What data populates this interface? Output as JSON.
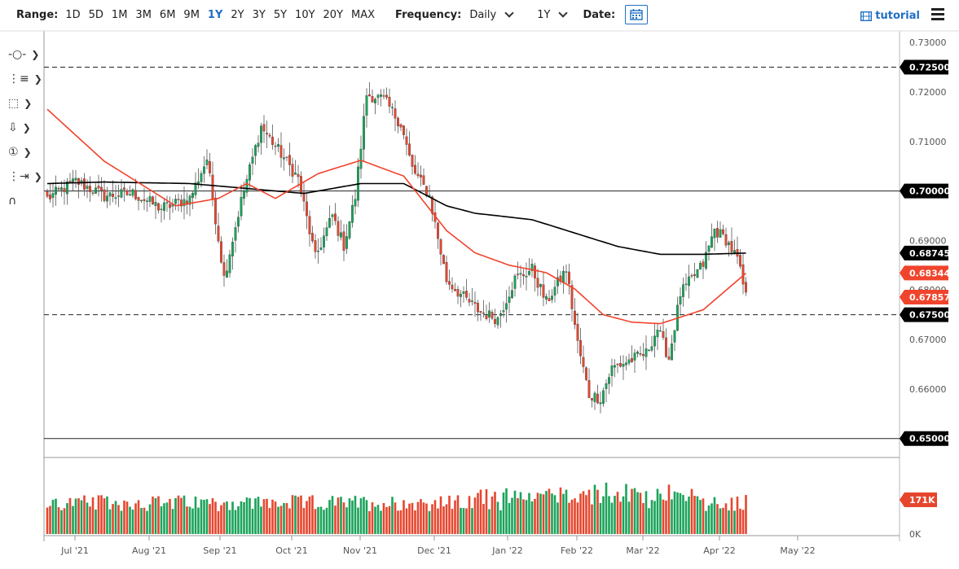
{
  "toolbar": {
    "range_label": "Range:",
    "ranges": [
      "1D",
      "5D",
      "1M",
      "3M",
      "6M",
      "9M",
      "1Y",
      "2Y",
      "3Y",
      "5Y",
      "10Y",
      "20Y",
      "MAX"
    ],
    "active_range": "1Y",
    "frequency_label": "Frequency:",
    "frequency_value": "Daily",
    "period_value": "1Y",
    "date_label": "Date:",
    "tutorial_label": "tutorial"
  },
  "chart_data": {
    "type": "candlestick",
    "x_ticks": [
      "Jul '21",
      "Aug '21",
      "Sep '21",
      "Oct '21",
      "Nov '21",
      "Dec '21",
      "Jan '22",
      "Feb '22",
      "Mar '22",
      "Apr '22",
      "May '22"
    ],
    "y_ticks": [
      "0.73000",
      "0.72000",
      "0.71000",
      "0.70000",
      "0.69000",
      "0.68000",
      "0.67000",
      "0.66000",
      "0.65000"
    ],
    "ylim": [
      0.6465,
      0.7315
    ],
    "horizontal_lines": [
      {
        "value": 0.725,
        "label": "0.72500",
        "style": "dashed"
      },
      {
        "value": 0.7,
        "label": "0.70000",
        "style": "solid"
      },
      {
        "value": 0.675,
        "label": "0.67500",
        "style": "dashed"
      },
      {
        "value": 0.65,
        "label": "0.65000",
        "style": "solid"
      }
    ],
    "price_tags": [
      {
        "value": 0.68745,
        "label": "0.68745",
        "color": "#000000",
        "series": "ma200"
      },
      {
        "value": 0.68344,
        "label": "0.68344",
        "color": "#f0442c",
        "series": "ma50"
      },
      {
        "value": 0.67857,
        "label": "0.67857",
        "color": "#f0442c",
        "series": "last"
      }
    ],
    "ma50_knots": [
      [
        0,
        0.7165
      ],
      [
        20,
        0.706
      ],
      [
        45,
        0.697
      ],
      [
        60,
        0.6985
      ],
      [
        70,
        0.7015
      ],
      [
        80,
        0.6985
      ],
      [
        95,
        0.7035
      ],
      [
        110,
        0.7062
      ],
      [
        125,
        0.703
      ],
      [
        140,
        0.692
      ],
      [
        150,
        0.6875
      ],
      [
        162,
        0.685
      ],
      [
        175,
        0.6835
      ],
      [
        185,
        0.6802
      ],
      [
        195,
        0.675
      ],
      [
        205,
        0.6735
      ],
      [
        215,
        0.6732
      ],
      [
        230,
        0.676
      ],
      [
        245,
        0.6834
      ]
    ],
    "ma200_knots": [
      [
        0,
        0.7015
      ],
      [
        20,
        0.7018
      ],
      [
        50,
        0.7015
      ],
      [
        70,
        0.7005
      ],
      [
        90,
        0.6995
      ],
      [
        110,
        0.7015
      ],
      [
        125,
        0.7015
      ],
      [
        140,
        0.697
      ],
      [
        150,
        0.6955
      ],
      [
        170,
        0.6942
      ],
      [
        185,
        0.6915
      ],
      [
        200,
        0.6888
      ],
      [
        215,
        0.6872
      ],
      [
        230,
        0.6872
      ],
      [
        245,
        0.68745
      ]
    ],
    "close_knots": [
      [
        0,
        0.6985
      ],
      [
        10,
        0.702
      ],
      [
        20,
        0.699
      ],
      [
        30,
        0.6995
      ],
      [
        40,
        0.6965
      ],
      [
        50,
        0.6985
      ],
      [
        56,
        0.7065
      ],
      [
        62,
        0.6825
      ],
      [
        68,
        0.698
      ],
      [
        75,
        0.713
      ],
      [
        82,
        0.7075
      ],
      [
        88,
        0.7025
      ],
      [
        94,
        0.6865
      ],
      [
        100,
        0.695
      ],
      [
        104,
        0.689
      ],
      [
        108,
        0.6988
      ],
      [
        112,
        0.7195
      ],
      [
        118,
        0.7185
      ],
      [
        124,
        0.7135
      ],
      [
        128,
        0.7045
      ],
      [
        134,
        0.699
      ],
      [
        140,
        0.682
      ],
      [
        146,
        0.6785
      ],
      [
        152,
        0.6755
      ],
      [
        158,
        0.6742
      ],
      [
        164,
        0.6822
      ],
      [
        170,
        0.6842
      ],
      [
        175,
        0.6775
      ],
      [
        182,
        0.6842
      ],
      [
        186,
        0.6692
      ],
      [
        190,
        0.6588
      ],
      [
        194,
        0.6582
      ],
      [
        198,
        0.6642
      ],
      [
        202,
        0.6652
      ],
      [
        206,
        0.6662
      ],
      [
        210,
        0.6672
      ],
      [
        214,
        0.6722
      ],
      [
        218,
        0.6662
      ],
      [
        222,
        0.6792
      ],
      [
        226,
        0.6822
      ],
      [
        230,
        0.6852
      ],
      [
        234,
        0.6922
      ],
      [
        238,
        0.6902
      ],
      [
        242,
        0.6862
      ],
      [
        245,
        0.67857
      ]
    ],
    "volume_label": "171K",
    "volume_zero_label": "0K"
  },
  "colors": {
    "up": "#1aa35a",
    "down": "#e6462e",
    "ma50": "#f0442c",
    "ma200": "#000000",
    "accent": "#1f6fc5"
  }
}
